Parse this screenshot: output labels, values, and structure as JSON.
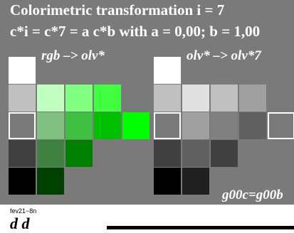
{
  "title": {
    "line1": "Colorimetric transformation i = 7",
    "line2": "c*i = c*7  = a c*b with a = 0,00; b = 1,00"
  },
  "labels": {
    "left": "rgb  –> olv*",
    "right": "olv* –> olv*7",
    "footer": "g00c=g00b"
  },
  "footer": {
    "code": "fev21−8n",
    "text": "d  d"
  },
  "swatches_left": [
    {
      "name": "swatch-l-0-0",
      "color": "#ffffff"
    },
    {
      "name": "swatch-l-1-0",
      "color": "#c0c0c0"
    },
    {
      "name": "swatch-l-2-0",
      "color": "#7a7a7a",
      "outline": true
    },
    {
      "name": "swatch-l-3-0",
      "color": "#404040"
    },
    {
      "name": "swatch-l-4-0",
      "color": "#000000"
    },
    {
      "name": "swatch-l-1-1",
      "color": "#c0ffc0"
    },
    {
      "name": "swatch-l-2-1",
      "color": "#80c080"
    },
    {
      "name": "swatch-l-3-1",
      "color": "#408040"
    },
    {
      "name": "swatch-l-4-1",
      "color": "#004000"
    },
    {
      "name": "swatch-l-1-2",
      "color": "#80ff80"
    },
    {
      "name": "swatch-l-2-2",
      "color": "#40c040"
    },
    {
      "name": "swatch-l-3-2",
      "color": "#008000"
    },
    {
      "name": "swatch-l-1-3",
      "color": "#40ff40"
    },
    {
      "name": "swatch-l-2-3",
      "color": "#00c000"
    },
    {
      "name": "swatch-l-2-4",
      "color": "#00ff00"
    }
  ],
  "swatches_right": [
    {
      "name": "swatch-r-0-0",
      "color": "#ffffff"
    },
    {
      "name": "swatch-r-1-0",
      "color": "#c0c0c0"
    },
    {
      "name": "swatch-r-2-0",
      "color": "#7a7a7a",
      "outline": true
    },
    {
      "name": "swatch-r-3-0",
      "color": "#404040"
    },
    {
      "name": "swatch-r-4-0",
      "color": "#000000"
    },
    {
      "name": "swatch-r-1-1",
      "color": "#e0e0e0"
    },
    {
      "name": "swatch-r-2-1",
      "color": "#a0a0a0"
    },
    {
      "name": "swatch-r-3-1",
      "color": "#606060"
    },
    {
      "name": "swatch-r-4-1",
      "color": "#202020"
    },
    {
      "name": "swatch-r-1-2",
      "color": "#c0c0c0"
    },
    {
      "name": "swatch-r-2-2",
      "color": "#808080"
    },
    {
      "name": "swatch-r-3-2",
      "color": "#404040"
    },
    {
      "name": "swatch-r-1-3",
      "color": "#a0a0a0"
    },
    {
      "name": "swatch-r-2-3",
      "color": "#606060"
    },
    {
      "name": "swatch-r-2-4",
      "color": "#7a7a7a",
      "outline": true
    }
  ]
}
